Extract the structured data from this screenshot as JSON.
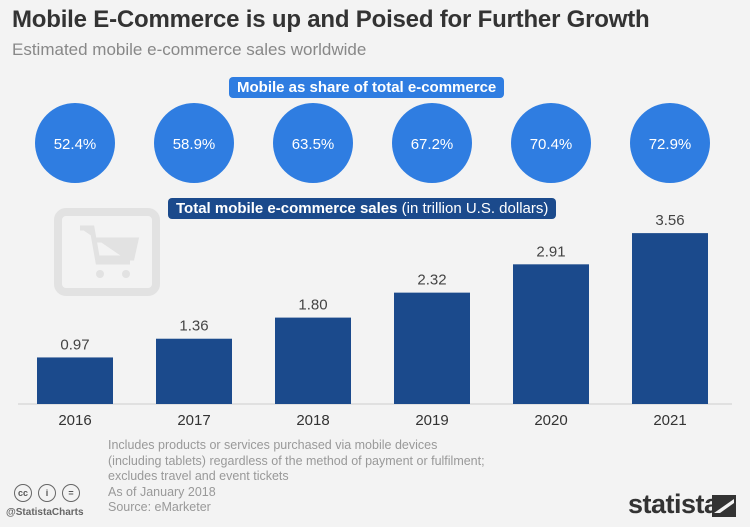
{
  "title": "Mobile E-Commerce is up and Poised for Further Growth",
  "subtitle": "Estimated mobile e-commerce sales worldwide",
  "share_label": "Mobile as share of total e-commerce",
  "sales_label_bold": "Total mobile e-commerce sales",
  "sales_label_unit": "(in trillion U.S. dollars)",
  "colors": {
    "bar": "#1b4a8c",
    "circle": "#2f7de1",
    "background": "#f3f3f3"
  },
  "chart_data": {
    "type": "bar",
    "categories": [
      "2016",
      "2017",
      "2018",
      "2019",
      "2020",
      "2021"
    ],
    "values": [
      0.97,
      1.36,
      1.8,
      2.32,
      2.91,
      3.56
    ],
    "value_labels": [
      "0.97",
      "1.36",
      "1.80",
      "2.32",
      "2.91",
      "3.56"
    ],
    "share_labels": [
      "52.4%",
      "58.9%",
      "63.5%",
      "67.2%",
      "70.4%",
      "72.9%"
    ],
    "ylabel": "Total mobile e-commerce sales (in trillion U.S. dollars)",
    "grid": false
  },
  "footer": {
    "notes": [
      "Includes products or services purchased via mobile devices",
      "(including tablets) regardless of the method of payment or fulfilment;",
      "excludes travel and event tickets",
      "As of January 2018",
      "Source: eMarketer"
    ],
    "handle": "@StatistaCharts",
    "logo": "statista"
  }
}
